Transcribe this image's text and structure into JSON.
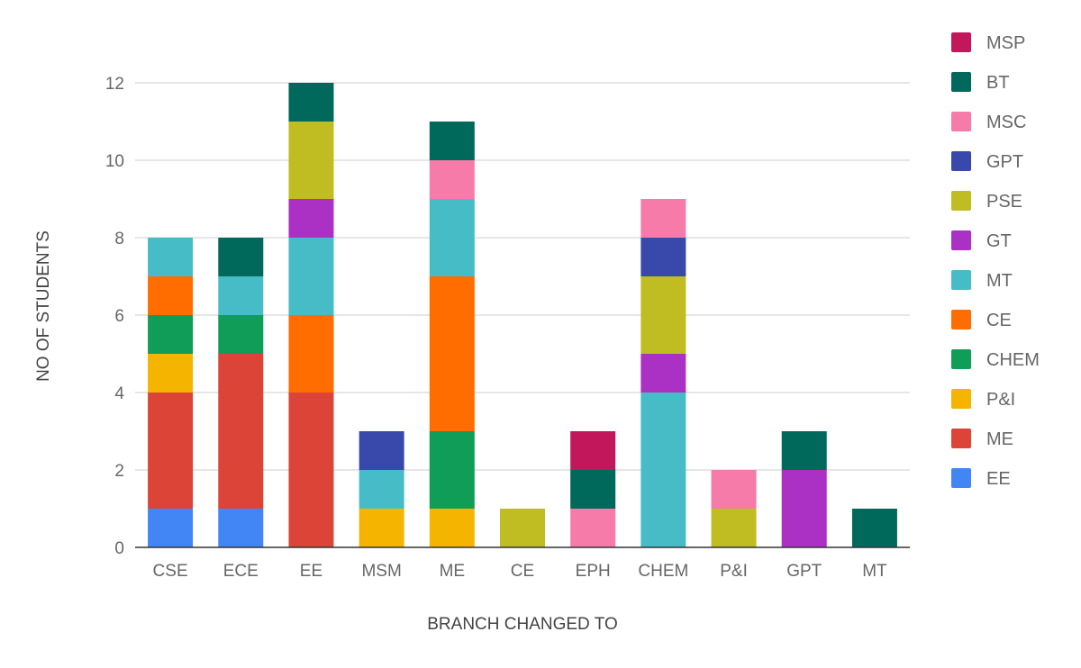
{
  "chart_data": {
    "type": "bar",
    "stacked": true,
    "title": "",
    "xlabel": "BRANCH CHANGED TO",
    "ylabel": "NO OF STUDENTS",
    "ylim": [
      0,
      12
    ],
    "yticks": [
      0,
      2,
      4,
      6,
      8,
      10,
      12
    ],
    "grid": true,
    "legend_position": "right",
    "categories": [
      "CSE",
      "ECE",
      "EE",
      "MSM",
      "ME",
      "CE",
      "EPH",
      "CHEM",
      "P&I",
      "GPT",
      "MT"
    ],
    "series": [
      {
        "name": "EE",
        "color": "#4285f4",
        "values": [
          1,
          1,
          0,
          0,
          0,
          0,
          0,
          0,
          0,
          0,
          0
        ]
      },
      {
        "name": "ME",
        "color": "#db4437",
        "values": [
          3,
          4,
          4,
          0,
          0,
          0,
          0,
          0,
          0,
          0,
          0
        ]
      },
      {
        "name": "P&I",
        "color": "#f4b400",
        "values": [
          1,
          0,
          0,
          1,
          1,
          0,
          0,
          0,
          0,
          0,
          0
        ]
      },
      {
        "name": "CHEM",
        "color": "#0f9d58",
        "values": [
          1,
          1,
          0,
          0,
          2,
          0,
          0,
          0,
          0,
          0,
          0
        ]
      },
      {
        "name": "CE",
        "color": "#ff6d00",
        "values": [
          1,
          0,
          2,
          0,
          4,
          0,
          0,
          0,
          0,
          0,
          0
        ]
      },
      {
        "name": "MT",
        "color": "#46bdc6",
        "values": [
          1,
          1,
          2,
          1,
          2,
          0,
          0,
          4,
          0,
          0,
          0
        ]
      },
      {
        "name": "GT",
        "color": "#ab30c4",
        "values": [
          0,
          0,
          1,
          0,
          0,
          0,
          0,
          1,
          0,
          2,
          0
        ]
      },
      {
        "name": "PSE",
        "color": "#c0bd23",
        "values": [
          0,
          0,
          2,
          0,
          0,
          1,
          0,
          2,
          1,
          0,
          0
        ]
      },
      {
        "name": "GPT",
        "color": "#3949ab",
        "values": [
          0,
          0,
          0,
          1,
          0,
          0,
          0,
          1,
          0,
          0,
          0
        ]
      },
      {
        "name": "MSC",
        "color": "#f77ba9",
        "values": [
          0,
          0,
          0,
          0,
          1,
          0,
          1,
          1,
          1,
          0,
          0
        ]
      },
      {
        "name": "BT",
        "color": "#00695c",
        "values": [
          0,
          1,
          1,
          0,
          1,
          0,
          1,
          0,
          0,
          1,
          1
        ]
      },
      {
        "name": "MSP",
        "color": "#c2185b",
        "values": [
          0,
          0,
          0,
          0,
          0,
          0,
          1,
          0,
          0,
          0,
          0
        ]
      }
    ]
  }
}
